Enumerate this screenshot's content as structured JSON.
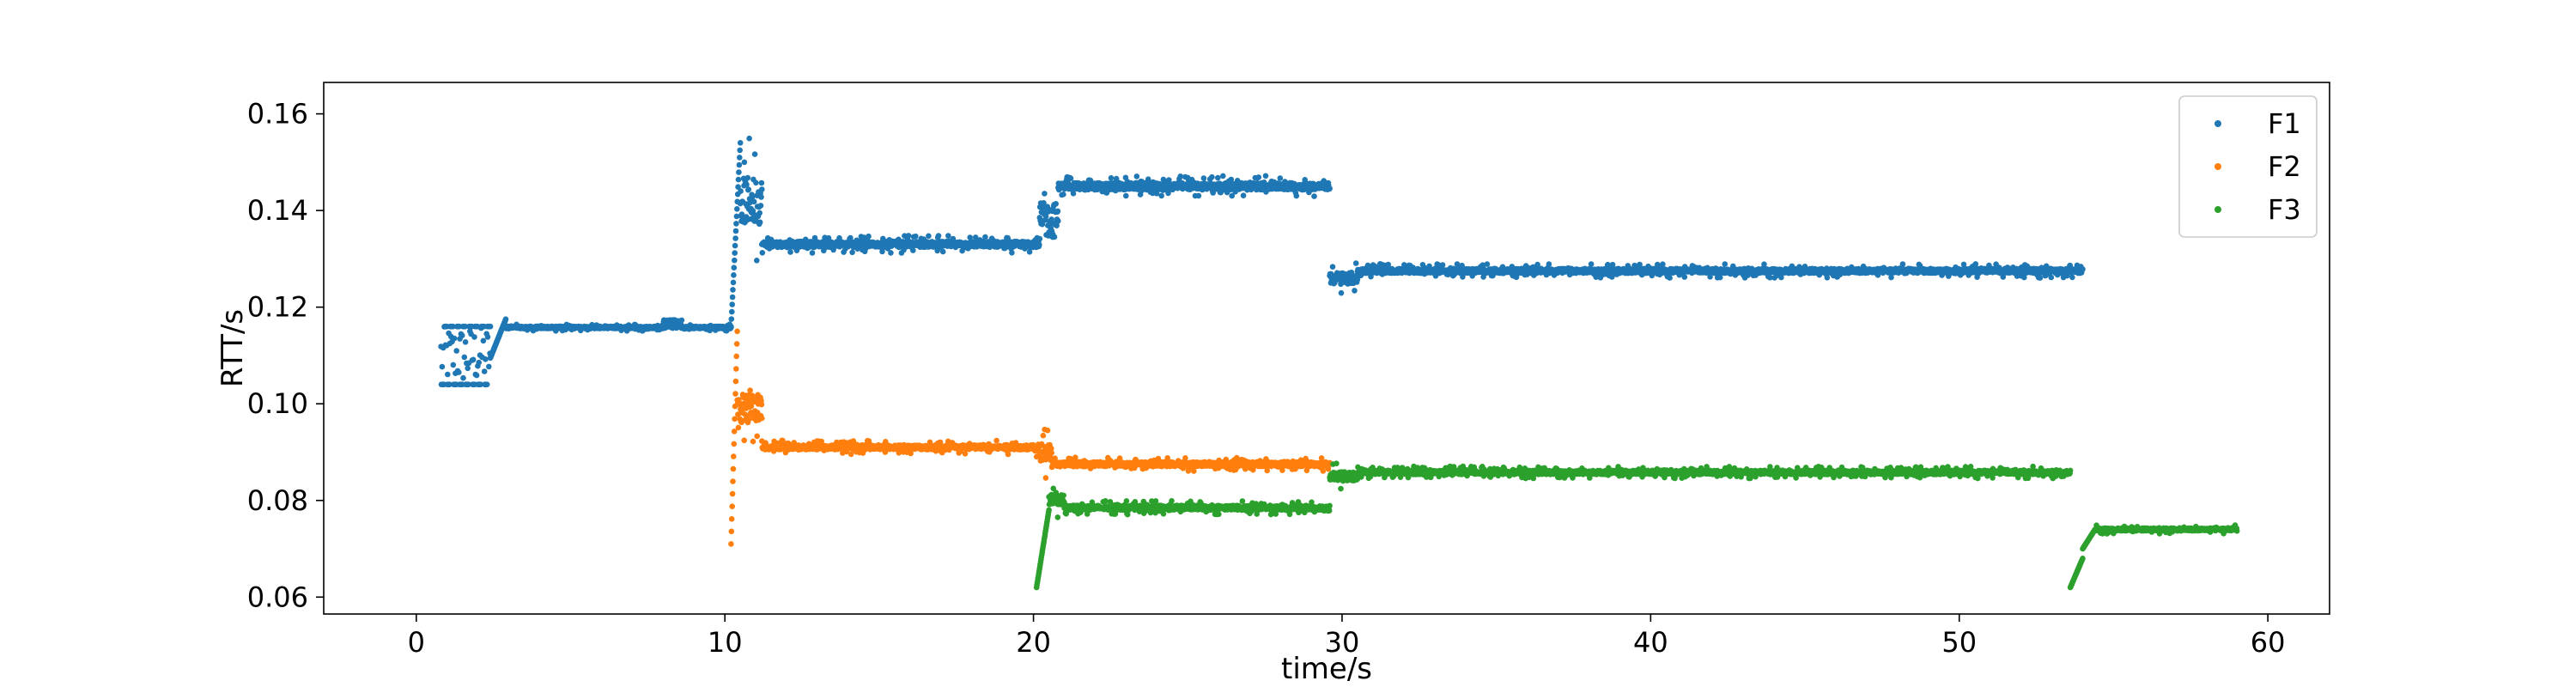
{
  "chart_data": {
    "type": "scatter",
    "title": "",
    "xlabel": "time/s",
    "ylabel": "RTT/s",
    "xlim": [
      -3,
      62
    ],
    "ylim": [
      0.0565,
      0.1665
    ],
    "xticks": [
      0,
      10,
      20,
      30,
      40,
      50,
      60
    ],
    "xtick_labels": [
      "0",
      "10",
      "20",
      "30",
      "40",
      "50",
      "60"
    ],
    "yticks": [
      0.06,
      0.08,
      0.1,
      0.12,
      0.14,
      0.16
    ],
    "ytick_labels": [
      "0.06",
      "0.08",
      "0.10",
      "0.12",
      "0.14",
      "0.16"
    ],
    "grid": false,
    "legend_position": "top-right",
    "series": [
      {
        "name": "F1",
        "color": "#1f77b4",
        "segments": [
          {
            "x_start": 0.8,
            "x_end": 2.4,
            "base": 0.104,
            "oscillation": {
              "low": 0.104,
              "high": 0.116,
              "period": 0.2
            }
          },
          {
            "x_start": 2.4,
            "x_end": 2.9,
            "base": 0.1095,
            "ramp_to": 0.1175
          },
          {
            "x_start": 2.9,
            "x_end": 8.0,
            "base": 0.1158,
            "noise": 0.0004
          },
          {
            "x_start": 8.0,
            "x_end": 8.6,
            "base": 0.1165,
            "noise": 0.0015
          },
          {
            "x_start": 8.6,
            "x_end": 10.2,
            "base": 0.1158,
            "noise": 0.0004
          },
          {
            "x_start": 10.2,
            "x_end": 10.5,
            "base": 0.116,
            "ramp_to": 0.154
          },
          {
            "x_start": 10.5,
            "x_end": 11.2,
            "base": 0.142,
            "noise": 0.008
          },
          {
            "x_start": 11.2,
            "x_end": 20.2,
            "base": 0.133,
            "noise": 0.001
          },
          {
            "x_start": 20.2,
            "x_end": 20.8,
            "base": 0.138,
            "noise": 0.006
          },
          {
            "x_start": 20.8,
            "x_end": 29.6,
            "base": 0.145,
            "noise": 0.0012
          },
          {
            "x_start": 29.6,
            "x_end": 30.5,
            "base": 0.126,
            "noise": 0.002
          },
          {
            "x_start": 30.5,
            "x_end": 54.0,
            "base": 0.1275,
            "noise": 0.0008
          }
        ]
      },
      {
        "name": "F2",
        "color": "#ff7f0e",
        "segments": [
          {
            "x_start": 10.2,
            "x_end": 10.4,
            "base": 0.071,
            "ramp_to": 0.115
          },
          {
            "x_start": 10.4,
            "x_end": 11.2,
            "base": 0.099,
            "noise": 0.005
          },
          {
            "x_start": 11.2,
            "x_end": 20.1,
            "base": 0.091,
            "noise": 0.0008
          },
          {
            "x_start": 20.1,
            "x_end": 20.6,
            "base": 0.09,
            "noise": 0.003
          },
          {
            "x_start": 20.6,
            "x_end": 29.6,
            "base": 0.0875,
            "noise": 0.0008
          }
        ]
      },
      {
        "name": "F3",
        "color": "#2ca02c",
        "segments": [
          {
            "x_start": 20.1,
            "x_end": 20.5,
            "base": 0.062,
            "ramp_to": 0.078
          },
          {
            "x_start": 20.5,
            "x_end": 21.0,
            "base": 0.08,
            "noise": 0.002
          },
          {
            "x_start": 21.0,
            "x_end": 29.6,
            "base": 0.0785,
            "noise": 0.0008
          },
          {
            "x_start": 29.6,
            "x_end": 30.5,
            "base": 0.085,
            "noise": 0.0015
          },
          {
            "x_start": 30.5,
            "x_end": 53.6,
            "base": 0.0858,
            "noise": 0.0007
          },
          {
            "x_start": 53.6,
            "x_end": 54.0,
            "base": 0.062,
            "ramp_to": 0.068
          },
          {
            "x_start": 54.0,
            "x_end": 54.4,
            "base": 0.07,
            "ramp_to": 0.074
          },
          {
            "x_start": 54.4,
            "x_end": 59.0,
            "base": 0.074,
            "noise": 0.0005
          }
        ]
      }
    ]
  }
}
